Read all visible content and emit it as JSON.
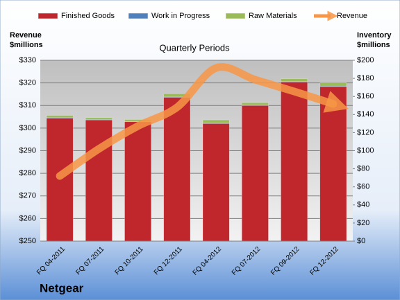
{
  "chart_data": {
    "type": "bar",
    "title": "Quarterly Periods",
    "brand": "Netgear",
    "ylabel": "Revenue $millions",
    "y2label": "Inventory $millions",
    "categories": [
      "FQ 04-2011",
      "FQ 07-2011",
      "FQ 10-2011",
      "FQ 12-2011",
      "FQ 04-2012",
      "FQ 07-2012",
      "FQ 09-2012",
      "FQ 12-2012"
    ],
    "stacked": true,
    "grid": true,
    "legend": "top",
    "series": [
      {
        "name": "Finished Goods",
        "color": "#c0272d",
        "axis": "y2",
        "values": [
          136,
          134,
          132,
          159,
          130,
          150,
          176,
          171
        ]
      },
      {
        "name": "Work in Progress",
        "color": "#4f81bd",
        "axis": "y2",
        "values": [
          0.5,
          0.5,
          0.5,
          0.5,
          0.5,
          0.5,
          0.5,
          0.5
        ]
      },
      {
        "name": "Raw Materials",
        "color": "#9bbb59",
        "axis": "y2",
        "values": [
          2.5,
          2,
          2,
          3.5,
          3.5,
          2.5,
          3,
          3.5
        ]
      },
      {
        "name": "Revenue",
        "color": "#f79646",
        "type": "line",
        "values": [
          278.8,
          290.8,
          300.9,
          309.2,
          326.6,
          321.4,
          316.2,
          310.7
        ]
      }
    ],
    "ylim": [
      250,
      330
    ],
    "yticks": [
      {
        "value": 250,
        "label": "$250"
      },
      {
        "value": 260,
        "label": "$260"
      },
      {
        "value": 270,
        "label": "$270"
      },
      {
        "value": 280,
        "label": "$280"
      },
      {
        "value": 290,
        "label": "$290"
      },
      {
        "value": 300,
        "label": "$300"
      },
      {
        "value": 310,
        "label": "$310"
      },
      {
        "value": 320,
        "label": "$320"
      },
      {
        "value": 330,
        "label": "$330"
      }
    ],
    "y2lim": [
      0,
      200
    ],
    "y2ticks": [
      {
        "value": 0,
        "label": "$0"
      },
      {
        "value": 20,
        "label": "$20"
      },
      {
        "value": 40,
        "label": "$40"
      },
      {
        "value": 60,
        "label": "$60"
      },
      {
        "value": 80,
        "label": "$80"
      },
      {
        "value": 100,
        "label": "$100"
      },
      {
        "value": 120,
        "label": "$120"
      },
      {
        "value": 140,
        "label": "$140"
      },
      {
        "value": 160,
        "label": "$160"
      },
      {
        "value": 180,
        "label": "$180"
      },
      {
        "value": 200,
        "label": "$200"
      }
    ]
  }
}
